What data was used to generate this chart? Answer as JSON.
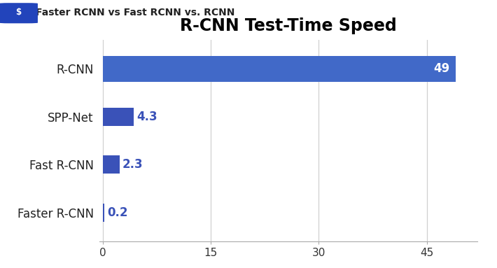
{
  "title": "R-CNN Test-Time Speed",
  "categories": [
    "R-CNN",
    "SPP-Net",
    "Fast R-CNN",
    "Faster R-CNN"
  ],
  "values": [
    49,
    4.3,
    2.3,
    0.2
  ],
  "bar_colors": [
    "#4169c8",
    "#3a52b8",
    "#3a52b8",
    "#3a52b8"
  ],
  "value_label_color_inside": "#ffffff",
  "value_label_color_outside": "#3a52b8",
  "xticks": [
    0,
    15,
    30,
    45
  ],
  "xlim": [
    -0.5,
    52
  ],
  "ylim": [
    -0.6,
    3.6
  ],
  "background_color": "#ffffff",
  "grid_color": "#d0d0d0",
  "title_fontsize": 17,
  "label_fontsize": 12,
  "tick_fontsize": 11,
  "value_fontsize": 12,
  "bar_height_rcnn": 0.55,
  "bar_height_others": 0.38,
  "header_text": "Faster RCNN vs Fast RCNN vs. RCNN",
  "header_fontsize": 10,
  "icon_color": "#2244bb"
}
